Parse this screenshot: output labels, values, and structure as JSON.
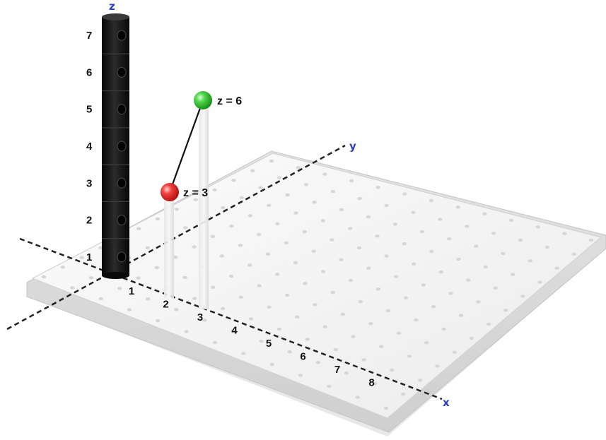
{
  "axes": {
    "x_label": "x",
    "y_label": "y",
    "z_label": "z",
    "label_color": "#2a3fc4"
  },
  "x_ticks": [
    "1",
    "2",
    "3",
    "4",
    "5",
    "6",
    "7",
    "8"
  ],
  "z_ticks": [
    "1",
    "2",
    "3",
    "4",
    "5",
    "6",
    "7"
  ],
  "points": [
    {
      "id": "red",
      "label": "z = 3",
      "z": 3,
      "color": "#e02020"
    },
    {
      "id": "green",
      "label": "z = 6",
      "z": 6,
      "color": "#22b422"
    }
  ],
  "colors": {
    "board": "#f2f2f2",
    "tower": "#141414",
    "axis_line": "#222222"
  }
}
